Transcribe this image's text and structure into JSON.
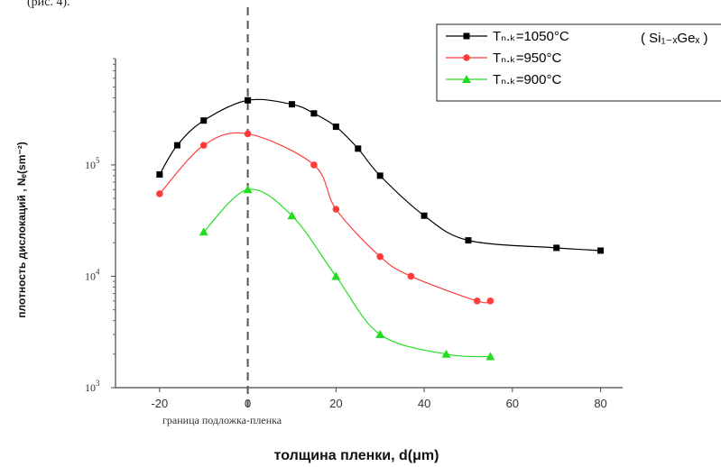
{
  "header_fragment": "(рис. 4).",
  "chart_data": {
    "type": "line",
    "title": "",
    "xlabel": "толщина пленки, d(μm)",
    "ylabel": "плотность дислокаций , Nₑ(sm⁻²)",
    "xlim": [
      -30,
      85
    ],
    "ylim": [
      1000,
      900000
    ],
    "yscale": "log",
    "x_ticks": [
      -20,
      0,
      20,
      40,
      60,
      80
    ],
    "y_ticks": [
      {
        "value": 1000,
        "base": "10",
        "exp": "3"
      },
      {
        "value": 10000,
        "base": "10",
        "exp": "4"
      },
      {
        "value": 100000,
        "base": "10",
        "exp": "5"
      }
    ],
    "grid": false,
    "legend_position": "top-right",
    "legend_note": "( Si₁₋ₓGeₓ )",
    "annotation": "граница подложка-пленка",
    "boundary_x": 0,
    "series": [
      {
        "name": "Tₙ.ₖ=1050°C",
        "color": "#000000",
        "marker": "square",
        "x": [
          -20,
          -16,
          -10,
          0,
          10,
          15,
          20,
          25,
          30,
          40,
          50,
          70,
          80
        ],
        "y": [
          82000,
          150000,
          250000,
          380000,
          350000,
          290000,
          220000,
          140000,
          80000,
          35000,
          21000,
          18000,
          17000
        ]
      },
      {
        "name": "Tₙ.ₖ=950°C",
        "color": "#ff3b3b",
        "marker": "circle",
        "x": [
          -20,
          -10,
          0,
          15,
          20,
          30,
          37,
          52,
          55
        ],
        "y": [
          55000,
          150000,
          190000,
          100000,
          40000,
          15000,
          10000,
          6000,
          6000
        ]
      },
      {
        "name": "Tₙ.ₖ=900°C",
        "color": "#22dd22",
        "marker": "triangle",
        "x": [
          -10,
          0,
          10,
          20,
          30,
          45,
          55
        ],
        "y": [
          25000,
          60000,
          35000,
          10000,
          3000,
          2000,
          1900
        ]
      }
    ]
  }
}
